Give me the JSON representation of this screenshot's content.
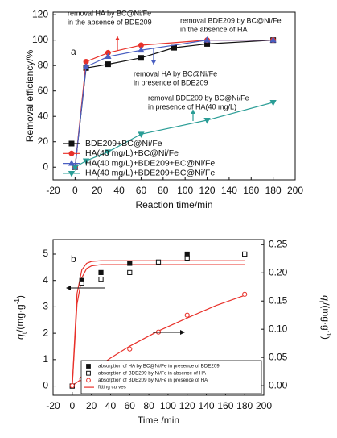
{
  "chart_data": [
    {
      "type": "line",
      "panel": "a",
      "xlabel": "Reaction time/min",
      "ylabel": "Removal efficiency/%",
      "xlim": [
        -20,
        200
      ],
      "xticks": [
        -20,
        0,
        20,
        40,
        60,
        80,
        100,
        120,
        140,
        160,
        180,
        200
      ],
      "ylim": [
        -10,
        122
      ],
      "yticks": [
        0,
        20,
        40,
        60,
        80,
        100,
        120
      ],
      "series": [
        {
          "name": "BDE209+BC@Ni/Fe",
          "color": "#111111",
          "marker": "square",
          "x": [
            0,
            10,
            30,
            60,
            90,
            120,
            180
          ],
          "values": [
            0,
            78,
            81,
            86,
            94,
            97,
            100
          ]
        },
        {
          "name": "HA(40 mg/L)+BC@Ni/Fe",
          "color": "#e8312a",
          "marker": "circle",
          "x": [
            0,
            10,
            30,
            60,
            120,
            180
          ],
          "values": [
            0,
            83,
            90,
            96,
            100,
            100
          ]
        },
        {
          "name": "HA(40 mg/L)+BDE209+BC@Ni/Fe",
          "color": "#4a5fc1",
          "marker": "triangle",
          "x": [
            0,
            10,
            30,
            60,
            120,
            180
          ],
          "values": [
            0,
            79,
            87,
            92,
            100,
            100
          ]
        },
        {
          "name": "HA(40 mg/L)+BDE209+BC@Ni/Fe",
          "color": "#2a9d96",
          "marker": "triangle-down",
          "x": [
            0,
            10,
            30,
            60,
            120,
            180
          ],
          "values": [
            0,
            5,
            12,
            26,
            37,
            51
          ]
        }
      ],
      "annotations": [
        [
          "removal HA by BC@Ni/Fe",
          "in the absence of BDE209"
        ],
        [
          "removal BDE209 by BC@Ni/Fe",
          "in the absence of HA"
        ],
        [
          "removal HA by BC@Ni/Fe",
          "in presence of BDE209"
        ],
        [
          "removal BDE209 by BC@Ni/Fe",
          "in presence of HA(40 mg/L)"
        ]
      ]
    },
    {
      "type": "scatter",
      "panel": "b",
      "xlabel": "Time /min",
      "ylabel": [
        "q",
        "t",
        "/(mg·g",
        "-1",
        ")"
      ],
      "y2label": [
        "q",
        "t",
        "/(mg·g",
        "-1",
        ")"
      ],
      "xlim": [
        -20,
        200
      ],
      "xticks": [
        -20,
        0,
        20,
        40,
        60,
        80,
        100,
        120,
        140,
        160,
        180,
        200
      ],
      "ylim": [
        -0.35,
        5.55
      ],
      "yticks": [
        0,
        1,
        2,
        3,
        4,
        5
      ],
      "y2lim": [
        -0.017,
        0.259
      ],
      "y2ticks": [
        {
          "value": 0,
          "label": "0.00"
        },
        {
          "value": 0.05,
          "label": "0.05"
        },
        {
          "value": 0.1,
          "label": "0.10"
        },
        {
          "value": 0.15,
          "label": "0.15"
        },
        {
          "value": 0.2,
          "label": "0.20"
        },
        {
          "value": 0.25,
          "label": "0.25"
        }
      ],
      "axis_colors": {
        "y": "#111111",
        "y2": "#2b5aa8"
      },
      "series": [
        {
          "name": "absorption of HA by BC@Ni/Fe in presence of BDE209",
          "color": "#111111",
          "marker": "square-filled",
          "x": [
            0,
            10,
            30,
            60,
            120,
            180
          ],
          "values": [
            0,
            4.0,
            4.3,
            4.65,
            5.0,
            5.0
          ]
        },
        {
          "name": "absorption of BDE209 by Ni/Fe in absence of HA",
          "color": "#111111",
          "marker": "square-open",
          "x": [
            0,
            10,
            30,
            60,
            90,
            120,
            180
          ],
          "values": [
            0,
            3.9,
            4.05,
            4.3,
            4.7,
            4.85,
            5.0
          ]
        },
        {
          "name": "absorption of BDE209 by Ni/Fe in presence of HA",
          "color": "#e8312a",
          "marker": "circle-open",
          "axis": "y2",
          "x": [
            0,
            10,
            30,
            60,
            90,
            120,
            180
          ],
          "values": [
            0,
            0.012,
            0.038,
            0.065,
            0.095,
            0.125,
            0.162
          ]
        }
      ],
      "fit": {
        "name": "fitting curves",
        "color": "#e8312a",
        "curves": [
          {
            "x": [
              0,
              5,
              10,
              15,
              20,
              30,
              40,
              60,
              90,
              120,
              150,
              180
            ],
            "values": [
              0,
              3.5,
              4.4,
              4.65,
              4.72,
              4.75,
              4.75,
              4.75,
              4.75,
              4.75,
              4.75,
              4.75
            ]
          },
          {
            "x": [
              0,
              5,
              10,
              15,
              20,
              30,
              40,
              60,
              90,
              120,
              150,
              180
            ],
            "values": [
              0,
              3.1,
              4.1,
              4.45,
              4.55,
              4.6,
              4.6,
              4.6,
              4.6,
              4.6,
              4.6,
              4.6
            ]
          },
          {
            "axis": "y2",
            "x": [
              0,
              5,
              10,
              15,
              20,
              30,
              40,
              60,
              90,
              120,
              150,
              180
            ],
            "values": [
              0,
              0.006,
              0.012,
              0.018,
              0.024,
              0.037,
              0.049,
              0.07,
              0.097,
              0.12,
              0.142,
              0.16
            ]
          }
        ]
      }
    }
  ]
}
